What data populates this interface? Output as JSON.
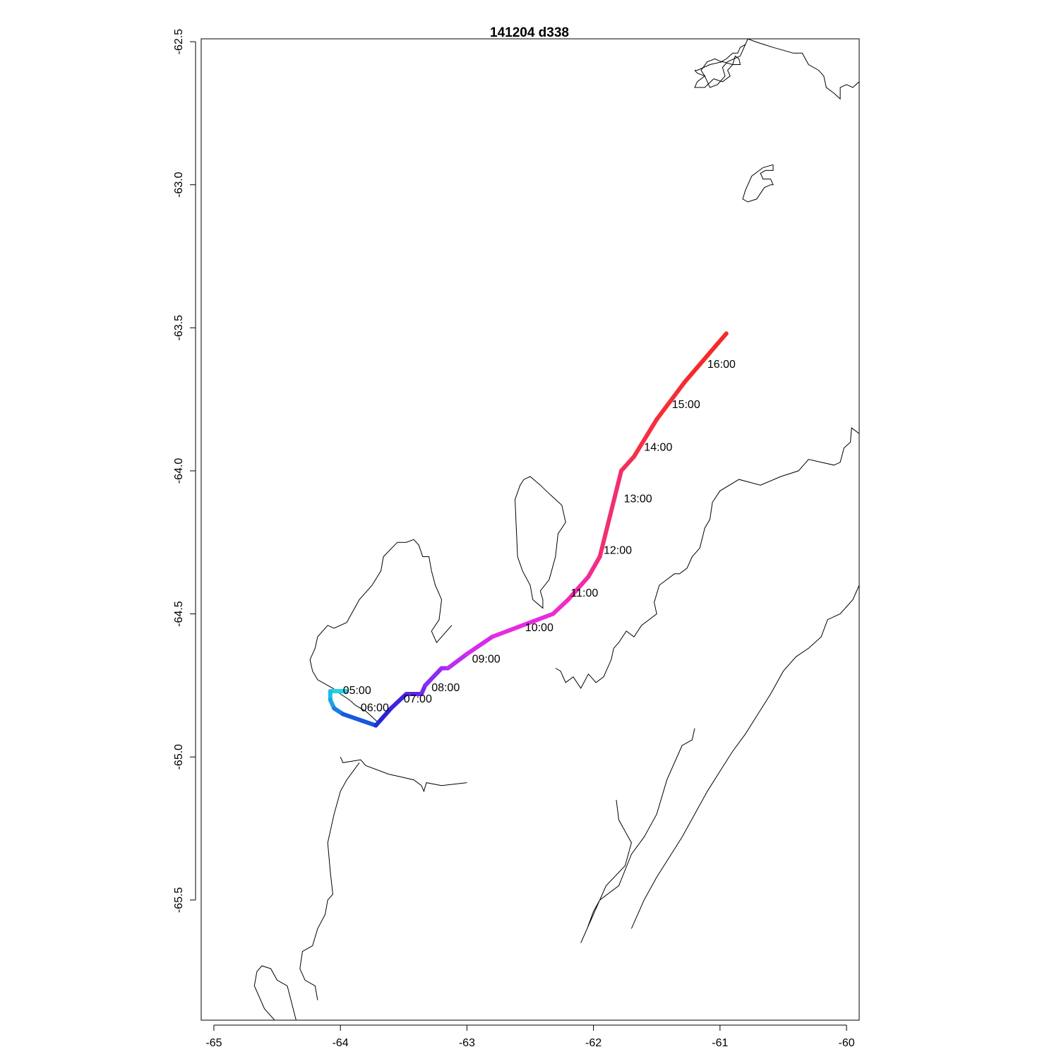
{
  "title": "141204   d338",
  "chart_data": {
    "type": "line",
    "title": "141204   d338",
    "xlabel": "",
    "ylabel": "",
    "xlim": [
      -65.1,
      -59.9
    ],
    "ylim": [
      -65.92,
      -62.49
    ],
    "x_ticks": [
      "-65",
      "-64",
      "-63",
      "-62",
      "-61",
      "-60"
    ],
    "x_tick_values": [
      -65,
      -64,
      -63,
      -62,
      -61,
      -60
    ],
    "y_ticks": [
      "-62.5",
      "-63.0",
      "-63.5",
      "-64.0",
      "-64.5",
      "-65.0",
      "-65.5"
    ],
    "y_tick_values": [
      -62.5,
      -63.0,
      -63.5,
      -64.0,
      -64.5,
      -65.0,
      -65.5
    ],
    "grid": false,
    "track": {
      "colors": [
        "#22d3e6",
        "#1fa8ea",
        "#1565e0",
        "#1f1fd6",
        "#4a22e6",
        "#7a2af0",
        "#a22cf2",
        "#d22cf0",
        "#f02cd6",
        "#f22a9a",
        "#f2306a",
        "#f53040",
        "#f52a2a"
      ],
      "x": [
        -63.95,
        -64.08,
        -64.08,
        -64.05,
        -63.98,
        -63.72,
        -63.68,
        -63.6,
        -63.48,
        -63.36,
        -63.33,
        -63.2,
        -63.15,
        -63.0,
        -62.8,
        -62.32,
        -62.2,
        -62.04,
        -61.95,
        -61.78,
        -61.68,
        -61.5,
        -61.28,
        -60.95
      ],
      "y": [
        -64.77,
        -64.77,
        -64.8,
        -64.83,
        -64.85,
        -64.89,
        -64.87,
        -64.83,
        -64.78,
        -64.78,
        -64.75,
        -64.69,
        -64.69,
        -64.64,
        -64.58,
        -64.5,
        -64.45,
        -64.37,
        -64.3,
        -64.0,
        -63.95,
        -63.82,
        -63.69,
        -63.52
      ]
    },
    "annotations": [
      {
        "text": "05:00",
        "x": -63.98,
        "y": -64.78
      },
      {
        "text": "06:00",
        "x": -63.84,
        "y": -64.84
      },
      {
        "text": "07:00",
        "x": -63.5,
        "y": -64.81
      },
      {
        "text": "08:00",
        "x": -63.28,
        "y": -64.77
      },
      {
        "text": "09:00",
        "x": -62.96,
        "y": -64.67
      },
      {
        "text": "10:00",
        "x": -62.54,
        "y": -64.56
      },
      {
        "text": "11:00",
        "x": -62.18,
        "y": -64.44
      },
      {
        "text": "12:00",
        "x": -61.92,
        "y": -64.29
      },
      {
        "text": "13:00",
        "x": -61.76,
        "y": -64.11
      },
      {
        "text": "14:00",
        "x": -61.6,
        "y": -63.93
      },
      {
        "text": "15:00",
        "x": -61.38,
        "y": -63.78
      },
      {
        "text": "16:00",
        "x": -61.1,
        "y": -63.64
      }
    ],
    "coastlines": [
      {
        "x": [
          -61.2,
          -61.18,
          -61.12,
          -61.18,
          -61.2,
          -61.12,
          -61.05,
          -60.98,
          -60.92,
          -60.94,
          -60.9,
          -60.88,
          -60.85,
          -60.84,
          -60.9,
          -60.98,
          -61.08,
          -61.18,
          -61.2
        ],
        "y": [
          -62.6,
          -62.61,
          -62.62,
          -62.64,
          -62.66,
          -62.66,
          -62.63,
          -62.64,
          -62.62,
          -62.6,
          -62.58,
          -62.55,
          -62.56,
          -62.58,
          -62.58,
          -62.57,
          -62.58,
          -62.6,
          -62.6
        ]
      },
      {
        "x": [
          -60.78,
          -60.84,
          -60.94,
          -60.98,
          -60.96,
          -61.02,
          -61.08,
          -61.1,
          -61.12,
          -61.15,
          -61.1,
          -61.04,
          -60.99,
          -60.95,
          -60.9,
          -60.86,
          -60.84,
          -60.8,
          -60.78,
          -60.72,
          -60.65,
          -60.58,
          -60.5,
          -60.42,
          -60.35,
          -60.3,
          -60.22,
          -60.18,
          -60.16,
          -60.1,
          -60.05,
          -60.05,
          -60.0,
          -59.95,
          -59.9
        ],
        "y": [
          -62.49,
          -62.55,
          -62.57,
          -62.59,
          -62.62,
          -62.65,
          -62.66,
          -62.64,
          -62.62,
          -62.6,
          -62.57,
          -62.56,
          -62.57,
          -62.56,
          -62.54,
          -62.54,
          -62.52,
          -62.51,
          -62.49,
          -62.5,
          -62.51,
          -62.52,
          -62.53,
          -62.54,
          -62.54,
          -62.58,
          -62.6,
          -62.62,
          -62.66,
          -62.68,
          -62.7,
          -62.66,
          -62.65,
          -62.66,
          -62.64
        ]
      },
      {
        "x": [
          -60.58,
          -60.66,
          -60.75,
          -60.8,
          -60.82,
          -60.78,
          -60.71,
          -60.65,
          -60.6,
          -60.58,
          -60.6,
          -60.66,
          -60.68,
          -60.64,
          -60.58,
          -60.58
        ],
        "y": [
          -62.93,
          -62.94,
          -62.97,
          -63.02,
          -63.05,
          -63.06,
          -63.05,
          -63.01,
          -63.0,
          -63.0,
          -62.98,
          -62.98,
          -62.96,
          -62.95,
          -62.95,
          -62.93
        ]
      },
      {
        "x": [
          -59.9,
          -59.96,
          -59.97,
          -60.02,
          -60.05,
          -60.1,
          -60.2,
          -60.3,
          -60.38,
          -60.52,
          -60.68,
          -60.85,
          -61.0,
          -61.06,
          -61.08,
          -61.12,
          -61.16,
          -61.22,
          -61.26,
          -61.32,
          -61.36,
          -61.42,
          -61.48,
          -61.52,
          -61.5,
          -61.62,
          -61.68,
          -61.74,
          -61.8,
          -61.84,
          -61.86,
          -61.92,
          -61.98,
          -62.04,
          -62.1,
          -62.16,
          -62.22,
          -62.26,
          -62.3
        ],
        "y": [
          -63.87,
          -63.85,
          -63.9,
          -63.92,
          -63.97,
          -63.98,
          -63.97,
          -63.96,
          -64.0,
          -64.02,
          -64.05,
          -64.03,
          -64.07,
          -64.11,
          -64.17,
          -64.2,
          -64.27,
          -64.3,
          -64.34,
          -64.36,
          -64.36,
          -64.38,
          -64.4,
          -64.46,
          -64.5,
          -64.54,
          -64.58,
          -64.56,
          -64.6,
          -64.62,
          -64.66,
          -64.72,
          -64.74,
          -64.71,
          -64.76,
          -64.72,
          -64.74,
          -64.7,
          -64.69
        ]
      },
      {
        "x": [
          -63.7,
          -63.8,
          -63.88,
          -63.93,
          -64.0,
          -64.06,
          -64.18,
          -64.22,
          -64.24,
          -64.2,
          -64.18,
          -64.12,
          -64.1,
          -64.05,
          -63.95,
          -63.85,
          -63.75,
          -63.68,
          -63.66,
          -63.55,
          -63.48,
          -63.42,
          -63.38,
          -63.35,
          -63.3,
          -63.28,
          -63.25,
          -63.2,
          -63.22,
          -63.28,
          -63.24,
          -63.18,
          -63.12
        ],
        "y": [
          -64.88,
          -64.84,
          -64.82,
          -64.8,
          -64.78,
          -64.76,
          -64.73,
          -64.7,
          -64.66,
          -64.62,
          -64.58,
          -64.55,
          -64.54,
          -64.55,
          -64.53,
          -64.45,
          -64.4,
          -64.35,
          -64.3,
          -64.25,
          -64.25,
          -64.24,
          -64.26,
          -64.3,
          -64.3,
          -64.35,
          -64.4,
          -64.45,
          -64.52,
          -64.56,
          -64.6,
          -64.57,
          -64.54
        ]
      },
      {
        "x": [
          -62.48,
          -62.5,
          -62.56,
          -62.6,
          -62.62,
          -62.58,
          -62.55,
          -62.5,
          -62.42,
          -62.35,
          -62.25,
          -62.22,
          -62.28,
          -62.3,
          -62.35,
          -62.42,
          -62.4,
          -62.4,
          -62.48
        ],
        "y": [
          -64.45,
          -64.4,
          -64.35,
          -64.3,
          -64.1,
          -64.05,
          -64.03,
          -64.02,
          -64.05,
          -64.08,
          -64.12,
          -64.18,
          -64.22,
          -64.3,
          -64.38,
          -64.42,
          -64.45,
          -64.48,
          -64.45
        ]
      },
      {
        "x": [
          -64.0,
          -63.98,
          -63.84,
          -63.8,
          -63.62,
          -63.52,
          -63.42,
          -63.36,
          -63.34,
          -63.32,
          -63.2,
          -63.0
        ],
        "y": [
          -65.0,
          -65.02,
          -65.01,
          -65.03,
          -65.06,
          -65.07,
          -65.08,
          -65.1,
          -65.12,
          -65.09,
          -65.1,
          -65.09
        ]
      },
      {
        "x": [
          -61.2,
          -61.22,
          -61.3,
          -61.42,
          -61.5,
          -61.6,
          -61.7,
          -61.8,
          -61.95,
          -62.0,
          -62.05,
          -62.1,
          -62.0,
          -61.9,
          -61.75,
          -61.7,
          -61.8,
          -61.82
        ],
        "y": [
          -64.9,
          -64.94,
          -64.96,
          -65.08,
          -65.2,
          -65.28,
          -65.34,
          -65.45,
          -65.5,
          -65.54,
          -65.6,
          -65.65,
          -65.55,
          -65.45,
          -65.38,
          -65.3,
          -65.22,
          -65.15
        ]
      },
      {
        "x": [
          -59.9,
          -59.95,
          -60.05,
          -60.15,
          -60.2,
          -60.3,
          -60.4,
          -60.5,
          -60.6,
          -60.7,
          -60.8,
          -60.9,
          -61.0,
          -61.1,
          -61.2,
          -61.3,
          -61.4,
          -61.5,
          -61.6,
          -61.7
        ],
        "y": [
          -64.4,
          -64.45,
          -64.5,
          -64.52,
          -64.58,
          -64.62,
          -64.65,
          -64.7,
          -64.78,
          -64.85,
          -64.92,
          -64.98,
          -65.05,
          -65.12,
          -65.2,
          -65.28,
          -65.35,
          -65.42,
          -65.5,
          -65.6
        ]
      },
      {
        "x": [
          -64.35,
          -64.42,
          -64.5,
          -64.55,
          -64.62,
          -64.66,
          -64.68,
          -64.6,
          -64.52,
          -64.45
        ],
        "y": [
          -65.92,
          -65.8,
          -65.78,
          -65.74,
          -65.73,
          -65.75,
          -65.8,
          -65.88,
          -65.92,
          -65.92
        ]
      },
      {
        "x": [
          -63.85,
          -63.9,
          -63.95,
          -64.0,
          -64.05,
          -64.1,
          -64.08,
          -64.06,
          -64.1,
          -64.12,
          -64.18,
          -64.22,
          -64.3,
          -64.32,
          -64.28,
          -64.2,
          -64.18
        ],
        "y": [
          -65.02,
          -65.05,
          -65.08,
          -65.12,
          -65.2,
          -65.3,
          -65.4,
          -65.48,
          -65.5,
          -65.55,
          -65.6,
          -65.66,
          -65.68,
          -65.74,
          -65.78,
          -65.8,
          -65.85
        ]
      }
    ]
  }
}
